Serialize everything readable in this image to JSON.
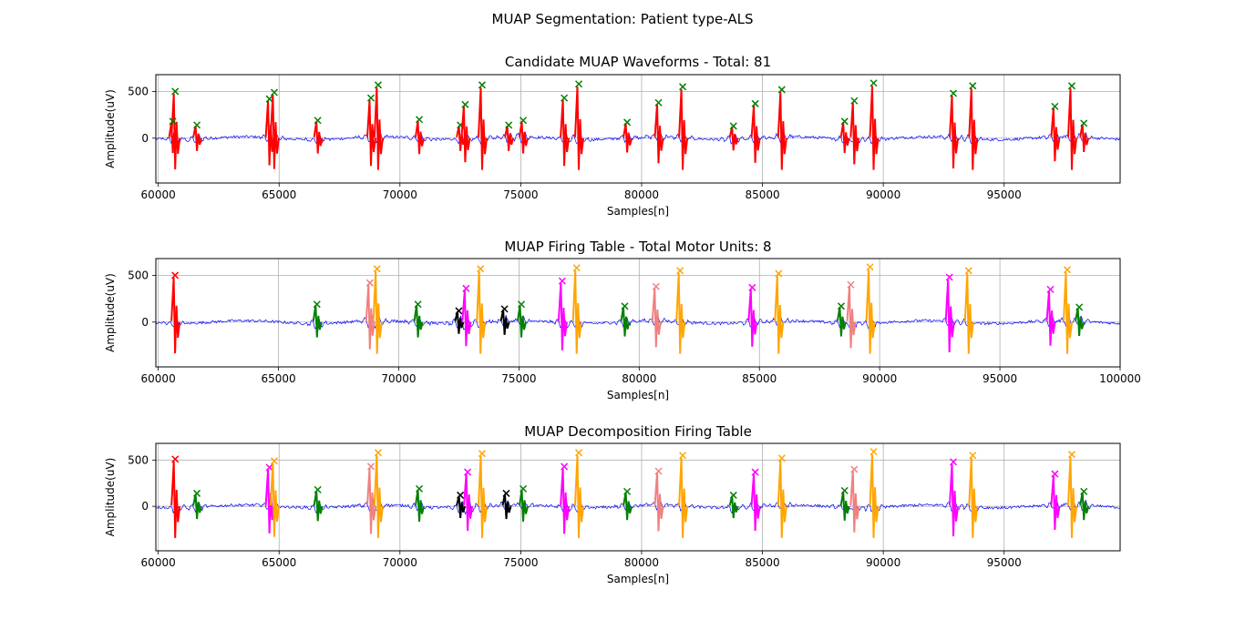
{
  "figure": {
    "suptitle": "MUAP Segmentation: Patient type-ALS"
  },
  "chart_data": [
    {
      "type": "line",
      "title": "Candidate MUAP Waveforms - Total: 81",
      "xlabel": "Samples[n]",
      "ylabel": "Amplitude(uV)",
      "xlim": [
        59900,
        99800
      ],
      "ylim": [
        -480,
        680
      ],
      "xticks": [
        60000,
        65000,
        70000,
        75000,
        80000,
        85000,
        90000,
        95000
      ],
      "yticks": [
        0,
        500
      ],
      "grid": true,
      "legend": false,
      "colors": {
        "signal": "#0000ff",
        "segment": "#ff0000",
        "marker": "#008000"
      },
      "signal_series": "background EMG trace (blue)",
      "peaks": [
        {
          "x": 60700,
          "y": 500
        },
        {
          "x": 60600,
          "y": 180
        },
        {
          "x": 61600,
          "y": 140
        },
        {
          "x": 64600,
          "y": 420
        },
        {
          "x": 64800,
          "y": 490
        },
        {
          "x": 66600,
          "y": 190
        },
        {
          "x": 68800,
          "y": 430
        },
        {
          "x": 69100,
          "y": 570
        },
        {
          "x": 70800,
          "y": 200
        },
        {
          "x": 72500,
          "y": 140
        },
        {
          "x": 72700,
          "y": 360
        },
        {
          "x": 73400,
          "y": 570
        },
        {
          "x": 74500,
          "y": 140
        },
        {
          "x": 75100,
          "y": 190
        },
        {
          "x": 76800,
          "y": 430
        },
        {
          "x": 77400,
          "y": 580
        },
        {
          "x": 79400,
          "y": 170
        },
        {
          "x": 80700,
          "y": 380
        },
        {
          "x": 81700,
          "y": 550
        },
        {
          "x": 83800,
          "y": 130
        },
        {
          "x": 84700,
          "y": 370
        },
        {
          "x": 85800,
          "y": 520
        },
        {
          "x": 88400,
          "y": 180
        },
        {
          "x": 88800,
          "y": 400
        },
        {
          "x": 89600,
          "y": 590
        },
        {
          "x": 92900,
          "y": 480
        },
        {
          "x": 93700,
          "y": 560
        },
        {
          "x": 97100,
          "y": 340
        },
        {
          "x": 97800,
          "y": 560
        },
        {
          "x": 98300,
          "y": 160
        }
      ]
    },
    {
      "type": "line",
      "title": "MUAP Firing Table - Total Motor Units: 8",
      "xlabel": "Samples[n]",
      "ylabel": "Amplitude(uV)",
      "xlim": [
        59900,
        100000
      ],
      "ylim": [
        -480,
        680
      ],
      "xticks": [
        60000,
        65000,
        70000,
        75000,
        80000,
        85000,
        90000,
        95000,
        100000
      ],
      "yticks": [
        0,
        500
      ],
      "grid": true,
      "legend": false,
      "colors": {
        "signal": "#0000ff"
      },
      "peaks": [
        {
          "x": 60700,
          "y": 500,
          "color": "#ff0000"
        },
        {
          "x": 66600,
          "y": 190,
          "color": "#008000"
        },
        {
          "x": 68800,
          "y": 420,
          "color": "#f08080"
        },
        {
          "x": 69100,
          "y": 570,
          "color": "#ffa500"
        },
        {
          "x": 70800,
          "y": 190,
          "color": "#008000"
        },
        {
          "x": 72500,
          "y": 120,
          "color": "#000000"
        },
        {
          "x": 72800,
          "y": 360,
          "color": "#ff00ff"
        },
        {
          "x": 73400,
          "y": 570,
          "color": "#ffa500"
        },
        {
          "x": 74400,
          "y": 140,
          "color": "#000000"
        },
        {
          "x": 75100,
          "y": 190,
          "color": "#008000"
        },
        {
          "x": 76800,
          "y": 440,
          "color": "#ff00ff"
        },
        {
          "x": 77400,
          "y": 580,
          "color": "#ffa500"
        },
        {
          "x": 79400,
          "y": 170,
          "color": "#008000"
        },
        {
          "x": 80700,
          "y": 380,
          "color": "#f08080"
        },
        {
          "x": 81700,
          "y": 550,
          "color": "#ffa500"
        },
        {
          "x": 84700,
          "y": 370,
          "color": "#ff00ff"
        },
        {
          "x": 85800,
          "y": 520,
          "color": "#ffa500"
        },
        {
          "x": 88400,
          "y": 170,
          "color": "#008000"
        },
        {
          "x": 88800,
          "y": 400,
          "color": "#f08080"
        },
        {
          "x": 89600,
          "y": 590,
          "color": "#ffa500"
        },
        {
          "x": 92900,
          "y": 480,
          "color": "#ff00ff"
        },
        {
          "x": 93700,
          "y": 550,
          "color": "#ffa500"
        },
        {
          "x": 97100,
          "y": 350,
          "color": "#ff00ff"
        },
        {
          "x": 97800,
          "y": 560,
          "color": "#ffa500"
        },
        {
          "x": 98300,
          "y": 160,
          "color": "#008000"
        }
      ]
    },
    {
      "type": "line",
      "title": "MUAP Decomposition Firing Table",
      "xlabel": "Samples[n]",
      "ylabel": "Amplitude(uV)",
      "xlim": [
        59900,
        99800
      ],
      "ylim": [
        -480,
        680
      ],
      "xticks": [
        60000,
        65000,
        70000,
        75000,
        80000,
        85000,
        90000,
        95000
      ],
      "yticks": [
        0,
        500
      ],
      "grid": true,
      "legend": false,
      "colors": {
        "signal": "#0000ff"
      },
      "peaks": [
        {
          "x": 60700,
          "y": 510,
          "color": "#ff0000"
        },
        {
          "x": 61600,
          "y": 140,
          "color": "#008000"
        },
        {
          "x": 64600,
          "y": 420,
          "color": "#ff00ff"
        },
        {
          "x": 64800,
          "y": 490,
          "color": "#ffa500"
        },
        {
          "x": 66600,
          "y": 180,
          "color": "#008000"
        },
        {
          "x": 68800,
          "y": 430,
          "color": "#f08080"
        },
        {
          "x": 69100,
          "y": 580,
          "color": "#ffa500"
        },
        {
          "x": 70800,
          "y": 190,
          "color": "#008000"
        },
        {
          "x": 72500,
          "y": 120,
          "color": "#000000"
        },
        {
          "x": 72800,
          "y": 370,
          "color": "#ff00ff"
        },
        {
          "x": 73400,
          "y": 570,
          "color": "#ffa500"
        },
        {
          "x": 74400,
          "y": 140,
          "color": "#000000"
        },
        {
          "x": 75100,
          "y": 190,
          "color": "#008000"
        },
        {
          "x": 76800,
          "y": 430,
          "color": "#ff00ff"
        },
        {
          "x": 77400,
          "y": 580,
          "color": "#ffa500"
        },
        {
          "x": 79400,
          "y": 160,
          "color": "#008000"
        },
        {
          "x": 80700,
          "y": 380,
          "color": "#f08080"
        },
        {
          "x": 81700,
          "y": 550,
          "color": "#ffa500"
        },
        {
          "x": 83800,
          "y": 120,
          "color": "#008000"
        },
        {
          "x": 84700,
          "y": 370,
          "color": "#ff00ff"
        },
        {
          "x": 85800,
          "y": 520,
          "color": "#ffa500"
        },
        {
          "x": 88400,
          "y": 170,
          "color": "#008000"
        },
        {
          "x": 88800,
          "y": 400,
          "color": "#f08080"
        },
        {
          "x": 89600,
          "y": 590,
          "color": "#ffa500"
        },
        {
          "x": 92900,
          "y": 480,
          "color": "#ff00ff"
        },
        {
          "x": 93700,
          "y": 550,
          "color": "#ffa500"
        },
        {
          "x": 97100,
          "y": 350,
          "color": "#ff00ff"
        },
        {
          "x": 97800,
          "y": 560,
          "color": "#ffa500"
        },
        {
          "x": 98300,
          "y": 160,
          "color": "#008000"
        }
      ]
    }
  ]
}
